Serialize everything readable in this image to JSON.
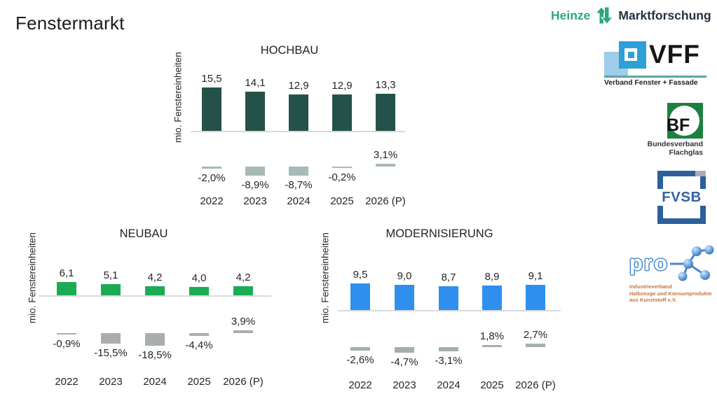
{
  "page_title": "Fenstermarkt",
  "heinze_logo": {
    "part1": "Heinze",
    "part2": "Marktforschung",
    "green": "#2aa878",
    "dark": "#233140"
  },
  "chart_data": [
    {
      "type": "bar",
      "title": "HOCHBAU",
      "ylabel": "mio. Fenstereinheiten",
      "categories": [
        "2022",
        "2023",
        "2024",
        "2025",
        "2026 (P)"
      ],
      "series": [
        {
          "name": "mio. Fenstereinheiten",
          "values": [
            15.5,
            14.1,
            12.9,
            12.9,
            13.3
          ],
          "labels": [
            "15,5",
            "14,1",
            "12,9",
            "12,9",
            "13,3"
          ]
        },
        {
          "name": "%",
          "values": [
            -2.0,
            -8.9,
            -8.7,
            -0.2,
            3.1
          ],
          "labels": [
            "-2,0%",
            "-8,9%",
            "-8,7%",
            "-0,2%",
            "3,1%"
          ]
        }
      ],
      "ylim": [
        0,
        16
      ],
      "legend": false,
      "grid": false,
      "bar_color": "#24524a",
      "pct_bar_color": "#a6bab7",
      "axis_color": "#d9d9d9"
    },
    {
      "type": "bar",
      "title": "NEUBAU",
      "ylabel": "mio. Fenstereinheiten",
      "categories": [
        "2022",
        "2023",
        "2024",
        "2025",
        "2026 (P)"
      ],
      "series": [
        {
          "name": "mio. Fenstereinheiten",
          "values": [
            6.1,
            5.1,
            4.2,
            4.0,
            4.2
          ],
          "labels": [
            "6,1",
            "5,1",
            "4,2",
            "4,0",
            "4,2"
          ]
        },
        {
          "name": "%",
          "values": [
            -0.9,
            -15.5,
            -18.5,
            -4.4,
            3.9
          ],
          "labels": [
            "-0,9%",
            "-15,5%",
            "-18,5%",
            "-4,4%",
            "3,9%"
          ]
        }
      ],
      "ylim": [
        0,
        7
      ],
      "legend": false,
      "grid": false,
      "bar_color": "#1cab55",
      "pct_bar_color": "#a9aeac",
      "axis_color": "#d9d9d9"
    },
    {
      "type": "bar",
      "title": "MODERNISIERUNG",
      "ylabel": "mio. Fenstereinheiten",
      "categories": [
        "2022",
        "2023",
        "2024",
        "2025",
        "2026 (P)"
      ],
      "series": [
        {
          "name": "mio. Fenstereinheiten",
          "values": [
            9.5,
            9.0,
            8.7,
            8.9,
            9.1
          ],
          "labels": [
            "9,5",
            "9,0",
            "8,7",
            "8,9",
            "9,1"
          ]
        },
        {
          "name": "%",
          "values": [
            -2.6,
            -4.7,
            -3.1,
            1.8,
            2.7
          ],
          "labels": [
            "-2,6%",
            "-4,7%",
            "-3,1%",
            "1,8%",
            "2,7%"
          ]
        }
      ],
      "ylim": [
        0,
        10
      ],
      "legend": false,
      "grid": false,
      "bar_color": "#2f8fed",
      "pct_bar_color": "#a4aeae",
      "axis_color": "#d9d9d9"
    }
  ],
  "side_logos": {
    "vff": {
      "acronym": "VFF",
      "subtitle": "Verband Fenster + Fassade"
    },
    "bf": {
      "acronym": "BF",
      "lines": [
        "Bundesverband",
        "Flachglas"
      ]
    },
    "fvsb": {
      "acronym": "FVSB"
    },
    "prok": {
      "acronym": "pro",
      "lines": [
        "Industrieverband",
        "Halbzeuge und Konsumprodukte",
        "aus Kunststoff e.V."
      ]
    }
  }
}
